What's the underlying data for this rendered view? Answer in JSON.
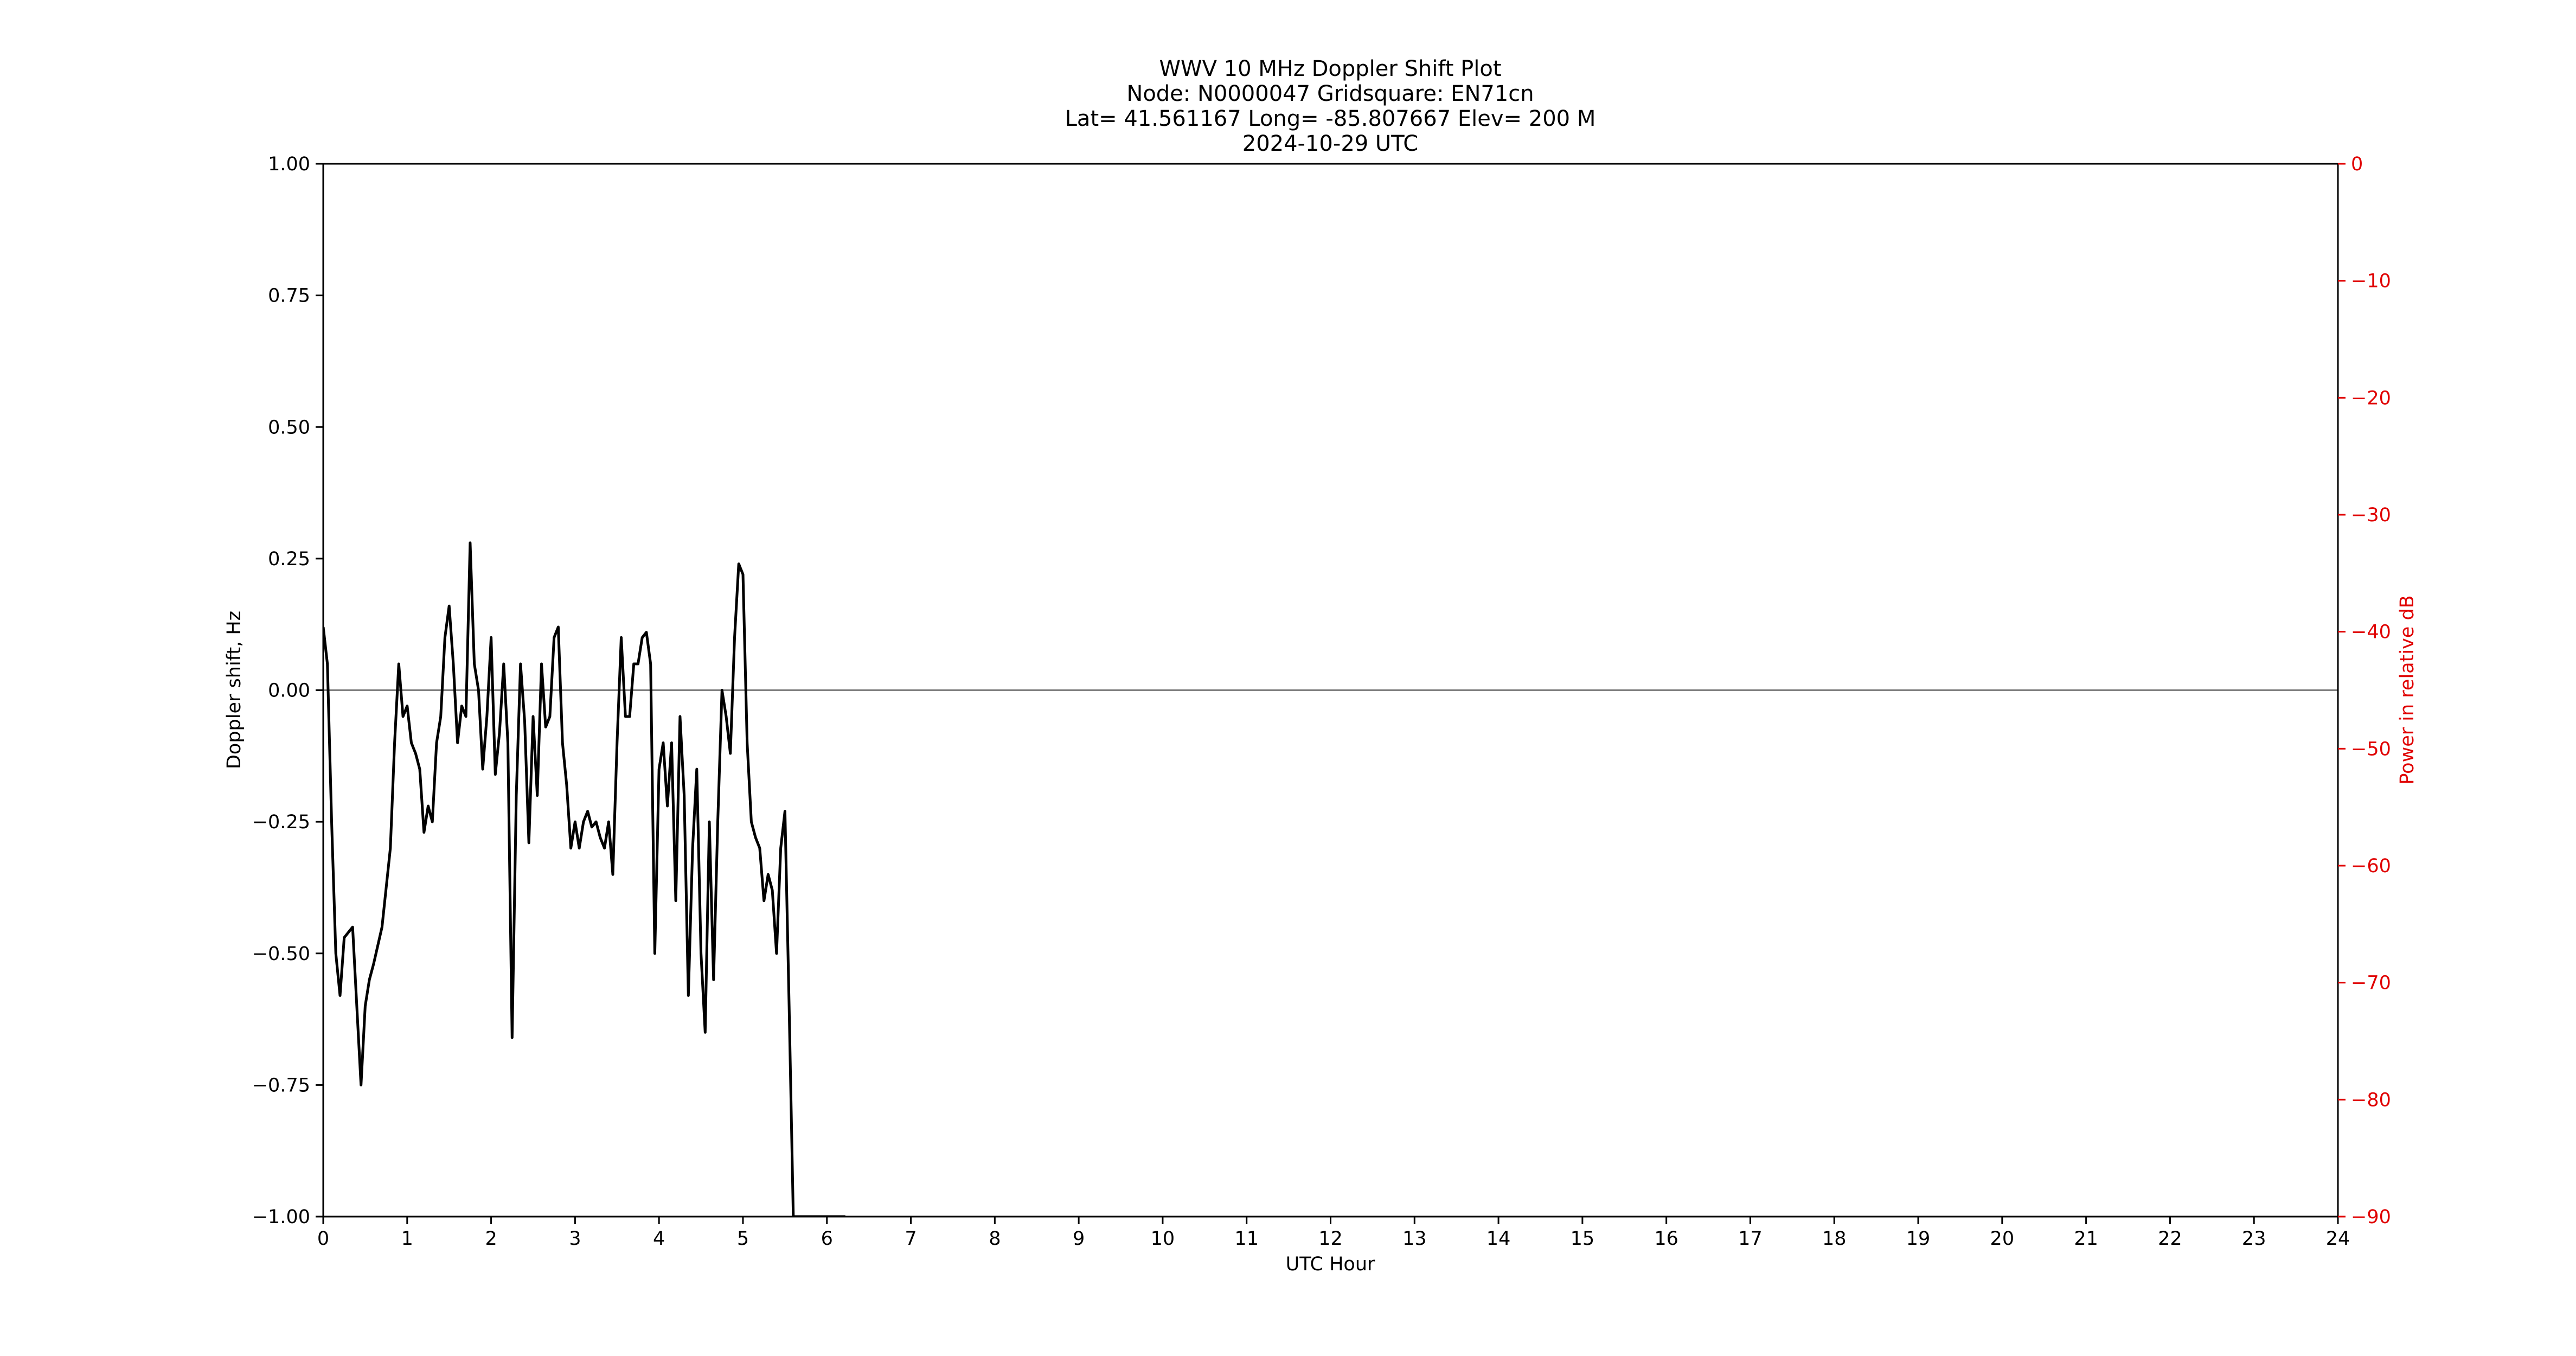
{
  "chart_data": {
    "type": "line",
    "title_lines": [
      "WWV 10 MHz Doppler Shift Plot",
      "Node:  N0000047     Gridsquare:  EN71cn",
      "Lat= 41.561167    Long= -85.807667    Elev= 200 M",
      "2024-10-29  UTC"
    ],
    "xlabel": "UTC Hour",
    "ylabel": "Doppler shift, Hz",
    "ylabel_right": "Power in relative dB",
    "xlim": [
      0,
      24
    ],
    "ylim": [
      -1.0,
      1.0
    ],
    "ylim_right": [
      -90,
      0
    ],
    "x_ticks": [
      0,
      1,
      2,
      3,
      4,
      5,
      6,
      7,
      8,
      9,
      10,
      11,
      12,
      13,
      14,
      15,
      16,
      17,
      18,
      19,
      20,
      21,
      22,
      23,
      24
    ],
    "x_tick_labels": [
      "0",
      "1",
      "2",
      "3",
      "4",
      "5",
      "6",
      "7",
      "8",
      "9",
      "10",
      "11",
      "12",
      "13",
      "14",
      "15",
      "16",
      "17",
      "18",
      "19",
      "20",
      "21",
      "22",
      "23",
      "24"
    ],
    "y_ticks": [
      1.0,
      0.75,
      0.5,
      0.25,
      0.0,
      -0.25,
      -0.5,
      -0.75,
      -1.0
    ],
    "y_tick_labels": [
      "1.00",
      "0.75",
      "0.50",
      "0.25",
      "0.00",
      "−0.25",
      "−0.50",
      "−0.75",
      "−1.00"
    ],
    "y_ticks_right": [
      0,
      -10,
      -20,
      -30,
      -40,
      -50,
      -60,
      -70,
      -80,
      -90
    ],
    "y_tick_labels_right": [
      "0",
      "−10",
      "−20",
      "−30",
      "−40",
      "−50",
      "−60",
      "−70",
      "−80",
      "−90"
    ],
    "zero_line": 0.0,
    "grid": false,
    "colors": {
      "doppler": "#000000",
      "power": "#e00000",
      "zero_line": "#808080"
    },
    "series": [
      {
        "axis": "left",
        "x": [
          0,
          0.05,
          0.1,
          0.15,
          0.2,
          0.25,
          0.3,
          0.35,
          0.4,
          0.45,
          0.5,
          0.55,
          0.6,
          0.7,
          0.8,
          0.85,
          0.9,
          0.95,
          1.0,
          1.05,
          1.1,
          1.15,
          1.2,
          1.25,
          1.3,
          1.35,
          1.4,
          1.45,
          1.5,
          1.55,
          1.6,
          1.65,
          1.7,
          1.75,
          1.8,
          1.85,
          1.9,
          1.95,
          2.0,
          2.05,
          2.1,
          2.15,
          2.2,
          2.25,
          2.3,
          2.35,
          2.4,
          2.45,
          2.5,
          2.55,
          2.6,
          2.65,
          2.7,
          2.75,
          2.8,
          2.85,
          2.9,
          2.95,
          3.0,
          3.05,
          3.1,
          3.15,
          3.2,
          3.25,
          3.3,
          3.35,
          3.4,
          3.45,
          3.5,
          3.55,
          3.6,
          3.65,
          3.7,
          3.75,
          3.8,
          3.85,
          3.9,
          3.95,
          4.0,
          4.05,
          4.1,
          4.15,
          4.2,
          4.25,
          4.3,
          4.35,
          4.4,
          4.45,
          4.5,
          4.55,
          4.6,
          4.65,
          4.7,
          4.75,
          4.8,
          4.85,
          4.9,
          4.95,
          5.0,
          5.05,
          5.1,
          5.15,
          5.2,
          5.25,
          5.3,
          5.35,
          5.4,
          5.45,
          5.5,
          5.55,
          5.6,
          5.65,
          5.7,
          5.75,
          5.8,
          5.85,
          5.9,
          5.95,
          6.0,
          6.05,
          6.1,
          6.15,
          6.2,
          6.22
        ],
        "y": [
          0.12,
          0.05,
          -0.25,
          -0.5,
          -0.58,
          -0.47,
          -0.46,
          -0.45,
          -0.6,
          -0.75,
          -0.6,
          -0.55,
          -0.52,
          -0.45,
          -0.3,
          -0.1,
          0.05,
          -0.05,
          -0.03,
          -0.1,
          -0.12,
          -0.15,
          -0.27,
          -0.22,
          -0.25,
          -0.1,
          -0.05,
          0.1,
          0.16,
          0.05,
          -0.1,
          -0.03,
          -0.05,
          0.28,
          0.05,
          0.0,
          -0.15,
          -0.05,
          0.1,
          -0.16,
          -0.08,
          0.05,
          -0.1,
          -0.66,
          -0.2,
          0.05,
          -0.06,
          -0.29,
          -0.05,
          -0.2,
          0.05,
          -0.07,
          -0.05,
          0.1,
          0.12,
          -0.1,
          -0.18,
          -0.3,
          -0.25,
          -0.3,
          -0.25,
          -0.23,
          -0.26,
          -0.25,
          -0.28,
          -0.3,
          -0.25,
          -0.35,
          -0.1,
          0.1,
          -0.05,
          -0.05,
          0.05,
          0.05,
          0.1,
          0.11,
          0.05,
          -0.5,
          -0.15,
          -0.1,
          -0.22,
          -0.1,
          -0.4,
          -0.05,
          -0.2,
          -0.58,
          -0.3,
          -0.15,
          -0.5,
          -0.65,
          -0.25,
          -0.55,
          -0.25,
          0.0,
          -0.05,
          -0.12,
          0.1,
          0.24,
          0.22,
          -0.1,
          -0.25,
          -0.28,
          -0.3,
          -0.4,
          -0.35,
          -0.38,
          -0.5,
          -0.3,
          -0.23,
          -0.6,
          -1.0,
          -1.0,
          -1.0,
          -1.0,
          -1.0,
          -1.0,
          -1.0,
          -1.0,
          -1.0,
          -1.0,
          -1.0,
          -1.0,
          -1.0,
          -1.0
        ]
      }
    ]
  }
}
